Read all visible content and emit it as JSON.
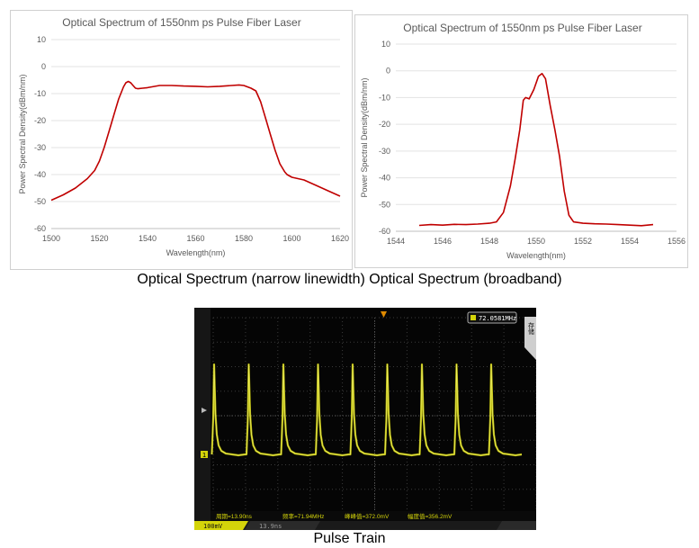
{
  "captions": {
    "top": "Optical Spectrum (narrow linewidth) Optical Spectrum (broadband)",
    "bottom": "Pulse Train"
  },
  "chart_data": [
    {
      "type": "line",
      "title": "Optical Spectrum of 1550nm ps Pulse Fiber Laser",
      "xlabel": "Wavelength(nm)",
      "ylabel": "Power Spectral Density(dBm/nm)",
      "xlim": [
        1500,
        1620
      ],
      "ylim": [
        -60,
        10
      ],
      "xticks": [
        1500,
        1520,
        1540,
        1560,
        1580,
        1600,
        1620
      ],
      "yticks": [
        10,
        0,
        -10,
        -20,
        -30,
        -40,
        -50,
        -60
      ],
      "color": "#c00000",
      "series": [
        {
          "name": "spectrum",
          "x": [
            1500,
            1505,
            1510,
            1515,
            1518,
            1520,
            1522,
            1524,
            1526,
            1528,
            1530,
            1531,
            1532,
            1533,
            1534,
            1535,
            1536,
            1538,
            1540,
            1545,
            1550,
            1555,
            1560,
            1565,
            1570,
            1575,
            1578,
            1580,
            1583,
            1585,
            1587,
            1589,
            1591,
            1593,
            1595,
            1597,
            1598,
            1599,
            1600,
            1605,
            1610,
            1615,
            1620
          ],
          "y": [
            -49.5,
            -47.5,
            -45,
            -41.5,
            -38.5,
            -35,
            -30,
            -24,
            -18,
            -12,
            -7.5,
            -6,
            -5.5,
            -6,
            -7,
            -8,
            -8.2,
            -8,
            -7.8,
            -7,
            -7,
            -7.2,
            -7.3,
            -7.5,
            -7.3,
            -7,
            -6.8,
            -7,
            -8,
            -9,
            -13,
            -19,
            -25,
            -31,
            -36,
            -39,
            -40,
            -40.5,
            -41,
            -42,
            -44,
            -46,
            -48
          ]
        }
      ]
    },
    {
      "type": "line",
      "title": "Optical Spectrum of 1550nm ps Pulse Fiber Laser",
      "xlabel": "Wavelength(nm)",
      "ylabel": "Power Spectral Density(dBm/nm)",
      "xlim": [
        1544,
        1556
      ],
      "ylim": [
        -60,
        10
      ],
      "xticks": [
        1544,
        1546,
        1548,
        1550,
        1552,
        1554,
        1556
      ],
      "yticks": [
        10,
        0,
        -10,
        -20,
        -30,
        -40,
        -50,
        -60
      ],
      "color": "#c00000",
      "series": [
        {
          "name": "spectrum",
          "x": [
            1545,
            1545.5,
            1546,
            1546.5,
            1547,
            1547.5,
            1548,
            1548.3,
            1548.6,
            1548.9,
            1549.1,
            1549.3,
            1549.45,
            1549.55,
            1549.7,
            1549.9,
            1550.1,
            1550.25,
            1550.4,
            1550.6,
            1550.8,
            1551,
            1551.2,
            1551.4,
            1551.6,
            1552,
            1552.5,
            1553,
            1553.5,
            1554,
            1554.5,
            1555
          ],
          "y": [
            -57.8,
            -57.5,
            -57.7,
            -57.4,
            -57.5,
            -57.3,
            -57,
            -56.5,
            -53,
            -43,
            -33,
            -22,
            -11,
            -10,
            -10.5,
            -7,
            -2,
            -1,
            -3,
            -13,
            -22,
            -32,
            -45,
            -54,
            -56.5,
            -57,
            -57.2,
            -57.3,
            -57.5,
            -57.7,
            -57.9,
            -57.5
          ]
        }
      ]
    },
    {
      "type": "line",
      "title": "Pulse Train",
      "xlabel": "",
      "ylabel": "",
      "color": "#d4d40a",
      "series": [
        {
          "name": "pulse-train",
          "x": [
            0,
            1,
            2,
            3,
            4,
            5,
            6,
            7,
            8
          ],
          "y": [
            1,
            1,
            1,
            1,
            1,
            1,
            1,
            1,
            1
          ]
        }
      ],
      "annotations": {
        "frequency_readout": "72.0581MHz",
        "side_button": "存储",
        "period": "周期=13.90ns",
        "frequency": "频率=71.94MHz",
        "peak_to_peak": "峰峰值=372.0mV",
        "amplitude": "幅度值=356.2mV",
        "channel_scale": "100mV",
        "channel_marker": "1",
        "timebase": "13.9ns"
      }
    }
  ]
}
